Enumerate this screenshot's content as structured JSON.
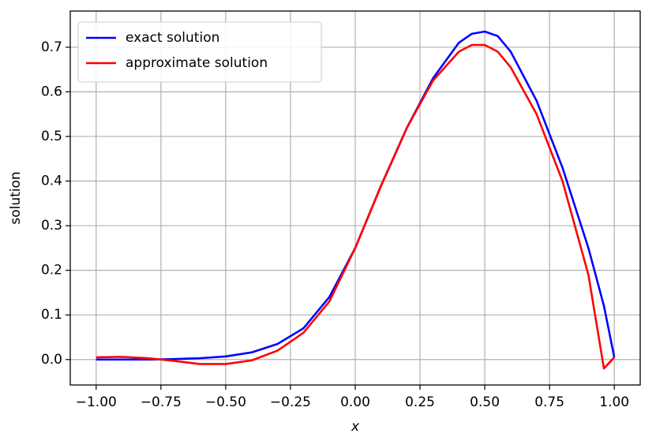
{
  "chart_data": {
    "type": "line",
    "xlabel": "x",
    "ylabel": "solution",
    "x": [
      -1,
      -0.9,
      -0.8,
      -0.7,
      -0.6,
      -0.5,
      -0.4,
      -0.3,
      -0.2,
      -0.1,
      0,
      0.1,
      0.2,
      0.3,
      0.4,
      0.45,
      0.5,
      0.55,
      0.6,
      0.7,
      0.8,
      0.9,
      0.96,
      1.0
    ],
    "series": [
      {
        "name": "exact solution",
        "color": "#0000ff",
        "values": [
          0,
          0,
          0,
          0.001,
          0.003,
          0.007,
          0.016,
          0.035,
          0.07,
          0.14,
          0.25,
          0.39,
          0.52,
          0.63,
          0.71,
          0.73,
          0.735,
          0.725,
          0.69,
          0.58,
          0.43,
          0.25,
          0.12,
          0.005
        ]
      },
      {
        "name": "approximate solution",
        "color": "#ff0000",
        "values": [
          0.005,
          0.006,
          0.003,
          -0.003,
          -0.01,
          -0.01,
          -0.002,
          0.02,
          0.06,
          0.13,
          0.25,
          0.39,
          0.52,
          0.625,
          0.69,
          0.705,
          0.705,
          0.69,
          0.655,
          0.55,
          0.4,
          0.19,
          -0.02,
          0.005
        ]
      }
    ],
    "xlim": [
      -1.1,
      1.1
    ],
    "ylim": [
      -0.057,
      0.781
    ],
    "xticks": [
      {
        "value": -1,
        "label": "−1.00"
      },
      {
        "value": -0.75,
        "label": "−0.75"
      },
      {
        "value": -0.5,
        "label": "−0.50"
      },
      {
        "value": -0.25,
        "label": "−0.25"
      },
      {
        "value": 0,
        "label": "0.00"
      },
      {
        "value": 0.25,
        "label": "0.25"
      },
      {
        "value": 0.5,
        "label": "0.50"
      },
      {
        "value": 0.75,
        "label": "0.75"
      },
      {
        "value": 1,
        "label": "1.00"
      }
    ],
    "yticks": [
      {
        "value": 0,
        "label": "0.0"
      },
      {
        "value": 0.1,
        "label": "0.1"
      },
      {
        "value": 0.2,
        "label": "0.2"
      },
      {
        "value": 0.3,
        "label": "0.3"
      },
      {
        "value": 0.4,
        "label": "0.4"
      },
      {
        "value": 0.5,
        "label": "0.5"
      },
      {
        "value": 0.6,
        "label": "0.6"
      },
      {
        "value": 0.7,
        "label": "0.7"
      }
    ],
    "grid": true,
    "legend": "upper left"
  }
}
